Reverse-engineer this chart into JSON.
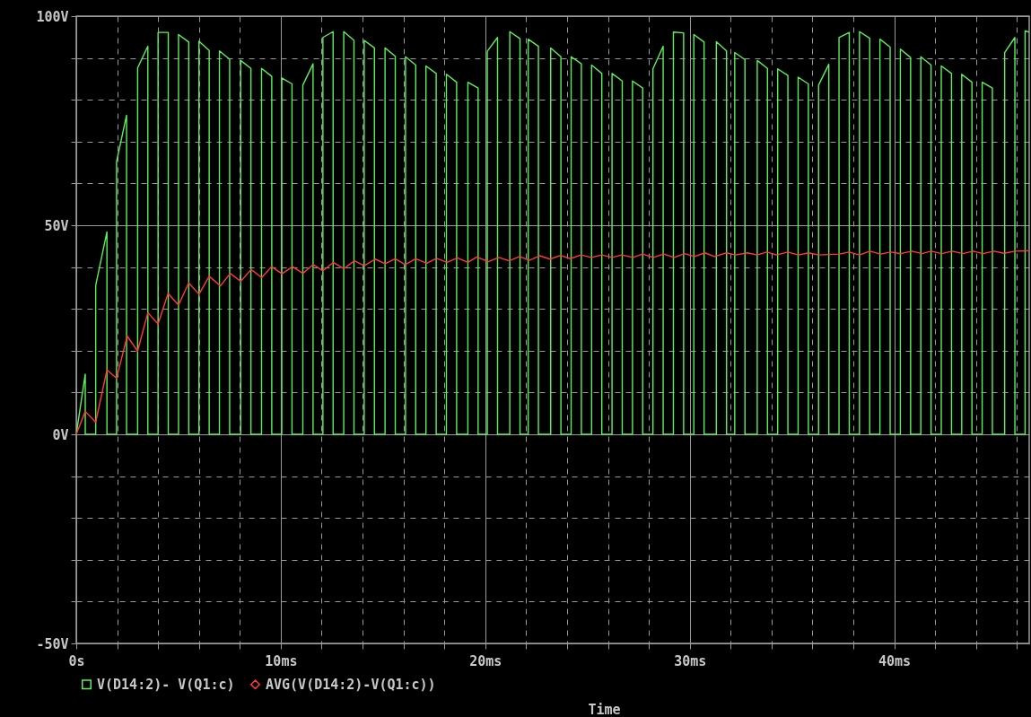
{
  "chart_data": {
    "type": "line",
    "xlabel": "Time",
    "legend": "bottom left",
    "grid": true,
    "line_style": "solid",
    "xlim": [
      0,
      46.6
    ],
    "ylim": [
      -50,
      100
    ],
    "xticks": [
      {
        "value": 0,
        "label": "0s"
      },
      {
        "value": 2,
        "label": null
      },
      {
        "value": 4,
        "label": null
      },
      {
        "value": 6,
        "label": null
      },
      {
        "value": 8,
        "label": null
      },
      {
        "value": 10,
        "label": "10ms"
      },
      {
        "value": 12,
        "label": null
      },
      {
        "value": 14,
        "label": null
      },
      {
        "value": 16,
        "label": null
      },
      {
        "value": 18,
        "label": null
      },
      {
        "value": 20,
        "label": "20ms"
      },
      {
        "value": 22,
        "label": null
      },
      {
        "value": 24,
        "label": null
      },
      {
        "value": 26,
        "label": null
      },
      {
        "value": 28,
        "label": null
      },
      {
        "value": 30,
        "label": "30ms"
      },
      {
        "value": 32,
        "label": null
      },
      {
        "value": 34,
        "label": null
      },
      {
        "value": 36,
        "label": null
      },
      {
        "value": 38,
        "label": null
      },
      {
        "value": 40,
        "label": "40ms"
      },
      {
        "value": 42,
        "label": null
      },
      {
        "value": 44,
        "label": null
      },
      {
        "value": 46,
        "label": null
      }
    ],
    "yticks": [
      {
        "value": -50,
        "label": "-50V"
      },
      {
        "value": -40,
        "label": null
      },
      {
        "value": -30,
        "label": null
      },
      {
        "value": -20,
        "label": null
      },
      {
        "value": -10,
        "label": null
      },
      {
        "value": 0,
        "label": "0V"
      },
      {
        "value": 10,
        "label": null
      },
      {
        "value": 20,
        "label": null
      },
      {
        "value": 30,
        "label": null
      },
      {
        "value": 40,
        "label": null
      },
      {
        "value": 50,
        "label": "50V"
      },
      {
        "value": 60,
        "label": null
      },
      {
        "value": 70,
        "label": null
      },
      {
        "value": 80,
        "label": null
      },
      {
        "value": 90,
        "label": null
      },
      {
        "value": 100,
        "label": "100V"
      }
    ],
    "series": [
      {
        "name": "V(D14:2)- V(Q1:c)",
        "color": "#5cf05c",
        "x": [
          0,
          0.44,
          0.44,
          0.95,
          0.95,
          1.5,
          1.5,
          1.97,
          1.97,
          2.46,
          2.46,
          3.0,
          3.0,
          3.5,
          3.5,
          4.0,
          4.0,
          4.5,
          4.5,
          5.0,
          5.0,
          5.5,
          5.5,
          6.0,
          6.0,
          6.5,
          6.5,
          7.0,
          7.0,
          7.5,
          7.5,
          8.04,
          8.04,
          8.54,
          8.54,
          9.06,
          9.06,
          9.56,
          9.56,
          10.05,
          10.05,
          10.55,
          10.55,
          11.08,
          11.08,
          11.58,
          11.58,
          12.06,
          12.06,
          12.56,
          12.56,
          13.08,
          13.08,
          13.58,
          13.58,
          14.08,
          14.08,
          14.58,
          14.58,
          15.1,
          15.1,
          15.6,
          15.6,
          16.1,
          16.1,
          16.6,
          16.6,
          17.1,
          17.1,
          17.6,
          17.6,
          18.1,
          18.1,
          18.6,
          18.6,
          19.15,
          19.15,
          19.65,
          19.65,
          20.1,
          20.1,
          20.6,
          20.6,
          21.2,
          21.2,
          21.7,
          21.7,
          22.1,
          22.1,
          22.6,
          22.6,
          23.2,
          23.2,
          23.7,
          23.7,
          24.2,
          24.2,
          24.7,
          24.7,
          25.2,
          25.2,
          25.7,
          25.7,
          26.2,
          26.2,
          26.7,
          26.7,
          27.2,
          27.2,
          27.7,
          27.7,
          28.2,
          28.2,
          28.7,
          28.7,
          29.2,
          29.2,
          29.7,
          29.7,
          30.2,
          30.2,
          30.7,
          30.7,
          31.3,
          31.3,
          31.8,
          31.8,
          32.2,
          32.2,
          32.7,
          32.7,
          33.3,
          33.3,
          33.8,
          33.8,
          34.3,
          34.3,
          34.8,
          34.8,
          35.3,
          35.3,
          35.8,
          35.8,
          36.3,
          36.3,
          36.8,
          36.8,
          37.3,
          37.3,
          37.8,
          37.8,
          38.3,
          38.3,
          38.8,
          38.8,
          39.3,
          39.3,
          39.8,
          39.8,
          40.3,
          40.3,
          40.8,
          40.8,
          41.3,
          41.3,
          41.8,
          41.8,
          42.3,
          42.3,
          42.8,
          42.8,
          43.3,
          43.3,
          43.8,
          43.8,
          44.3,
          44.3,
          44.8,
          44.8,
          45.4,
          45.4,
          45.9,
          45.9,
          46.4,
          46.4,
          46.6
        ],
        "values": [
          0,
          14.4,
          0,
          0,
          35.6,
          48.4,
          0,
          0,
          65.2,
          76.3,
          0,
          0,
          87.6,
          92.8,
          0,
          0,
          96.1,
          96.1,
          0,
          0,
          95.6,
          93.8,
          0,
          0,
          94.0,
          91.8,
          0,
          0,
          91.7,
          89.7,
          0,
          0,
          89.4,
          87.5,
          0,
          0,
          87.5,
          85.6,
          0,
          0,
          85.2,
          83.8,
          0,
          0,
          83.5,
          88.6,
          0,
          0,
          94.9,
          96.3,
          0,
          0,
          96.3,
          94.2,
          0,
          0,
          94.2,
          92.4,
          0,
          0,
          92.4,
          90.4,
          0,
          0,
          90.3,
          88.3,
          0,
          0,
          88.1,
          86.3,
          0,
          0,
          86.1,
          84.2,
          0,
          0,
          84.2,
          82.8,
          0,
          0,
          91.6,
          94.9,
          0,
          0,
          96.3,
          94.6,
          0,
          0,
          94.5,
          92.8,
          0,
          0,
          92.4,
          90.3,
          0,
          0,
          90.3,
          88.6,
          0,
          0,
          88.3,
          86.3,
          0,
          0,
          86.3,
          84.5,
          0,
          0,
          84.5,
          82.8,
          0,
          0,
          87.4,
          92.8,
          0,
          0,
          96.2,
          96.0,
          0,
          0,
          95.6,
          93.8,
          0,
          0,
          93.9,
          91.7,
          0,
          0,
          91.3,
          89.6,
          0,
          0,
          89.4,
          87.5,
          0,
          0,
          87.4,
          85.8,
          0,
          0,
          85.4,
          83.8,
          0,
          0,
          83.5,
          88.5,
          0,
          0,
          94.9,
          96.1,
          0,
          0,
          96.3,
          94.7,
          0,
          0,
          94.5,
          92.6,
          0,
          0,
          92.1,
          90.1,
          0,
          0,
          90.3,
          88.3,
          0,
          0,
          88.1,
          86.3,
          0,
          0,
          86.1,
          84.2,
          0,
          0,
          84.2,
          82.8,
          0,
          0,
          91.3,
          94.9,
          0,
          0,
          96.5,
          96.2
        ]
      },
      {
        "name": "AVG(V(D14:2)-V(Q1:c))",
        "color": "#ff3a3a",
        "x": [
          0,
          0.44,
          0.95,
          1.5,
          1.97,
          2.49,
          3.0,
          3.5,
          4.0,
          4.49,
          5.0,
          5.5,
          6.0,
          6.5,
          7.05,
          7.53,
          8.04,
          8.55,
          9.07,
          9.55,
          10.06,
          10.57,
          11.08,
          11.59,
          12.06,
          12.57,
          13.08,
          13.6,
          14.08,
          14.62,
          15.1,
          15.6,
          16.08,
          16.6,
          17.14,
          17.62,
          18.13,
          18.64,
          19.15,
          19.59,
          20.15,
          20.66,
          21.17,
          21.68,
          22.15,
          22.66,
          23.17,
          23.68,
          24.16,
          24.68,
          25.19,
          25.7,
          26.2,
          26.68,
          27.22,
          27.7,
          28.21,
          28.73,
          29.24,
          29.75,
          30.23,
          30.74,
          31.21,
          31.8,
          32.24,
          32.82,
          33.29,
          33.77,
          34.25,
          34.8,
          35.31,
          35.82,
          36.3,
          37.32,
          37.79,
          38.3,
          38.81,
          39.33,
          39.84,
          40.32,
          40.86,
          41.35,
          41.81,
          42.32,
          42.84,
          43.35,
          43.86,
          44.34,
          44.88,
          45.37,
          45.91,
          46.57
        ],
        "values": [
          0,
          5.5,
          2.9,
          15.4,
          13.4,
          23.5,
          19.9,
          29.1,
          26.4,
          33.7,
          30.9,
          36.2,
          33.5,
          37.8,
          35.5,
          38.5,
          36.6,
          39.4,
          37.5,
          40.1,
          38.4,
          40.1,
          38.5,
          40.6,
          39.1,
          41.1,
          39.6,
          41.5,
          40.3,
          41.9,
          40.8,
          42.0,
          40.6,
          42.0,
          40.9,
          42.1,
          41.1,
          42.2,
          41.1,
          42.4,
          41.3,
          42.3,
          41.5,
          42.5,
          41.6,
          42.7,
          41.9,
          42.8,
          42.0,
          42.9,
          42.3,
          42.9,
          42.3,
          42.9,
          42.3,
          43.1,
          42.3,
          43.1,
          42.3,
          43.2,
          42.5,
          43.4,
          42.5,
          43.4,
          42.9,
          43.4,
          42.9,
          43.6,
          42.9,
          43.6,
          42.9,
          43.4,
          42.9,
          43.1,
          43.6,
          42.9,
          43.8,
          43.1,
          43.6,
          43.2,
          43.8,
          43.2,
          43.8,
          43.2,
          43.8,
          43.2,
          43.8,
          43.2,
          43.8,
          43.3,
          43.8,
          43.9
        ]
      }
    ]
  }
}
